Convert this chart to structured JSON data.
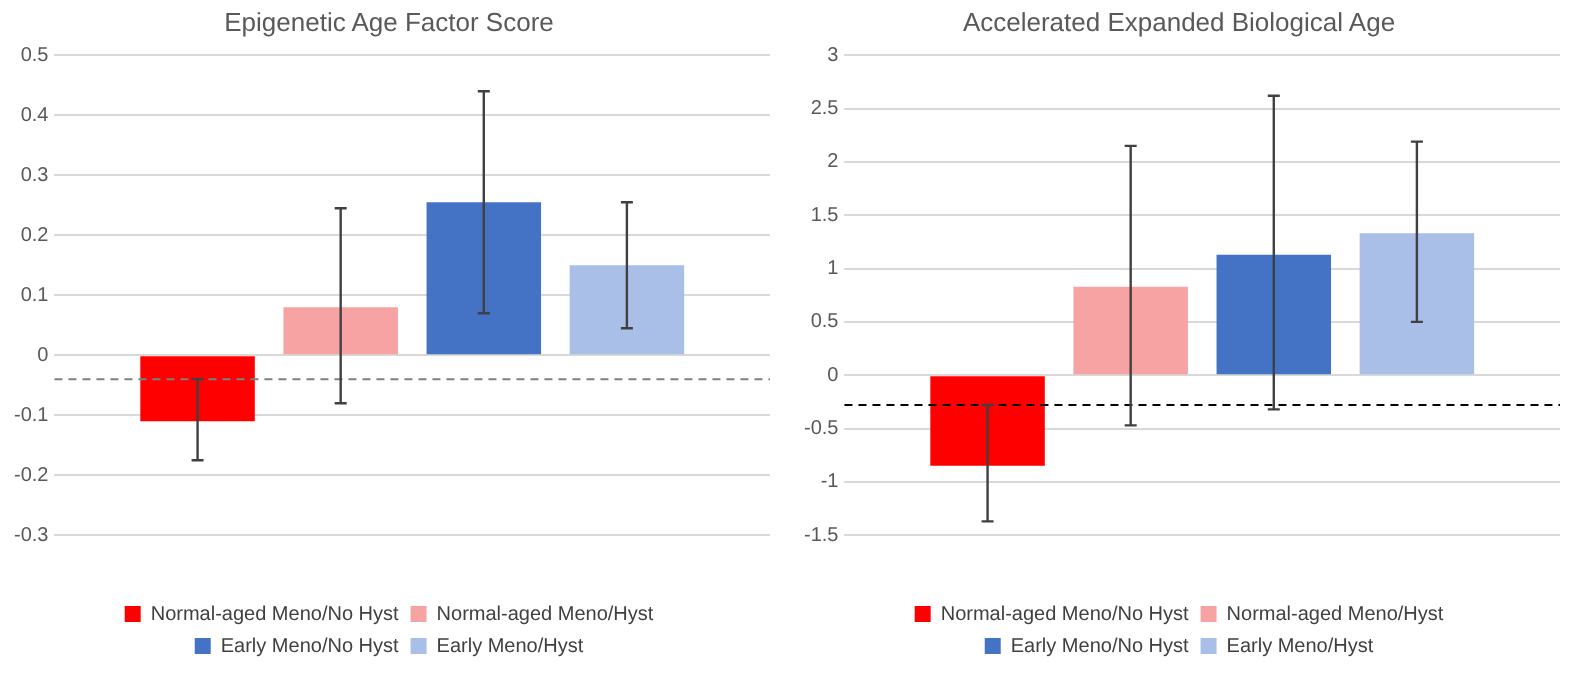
{
  "chart_data": [
    {
      "type": "bar",
      "title": "Epigenetic Age Factor Score",
      "categories": [
        null
      ],
      "series": [
        {
          "name": "Normal-aged Meno/No Hyst",
          "color": "#ff0000",
          "values": [
            -0.11
          ],
          "errors": [
            [
              -0.175,
              -0.04
            ]
          ]
        },
        {
          "name": "Normal-aged Meno/Hyst",
          "color": "#f7a3a3",
          "values": [
            0.08
          ],
          "errors": [
            [
              -0.08,
              0.245
            ]
          ]
        },
        {
          "name": "Early Meno/No Hyst",
          "color": "#4472c4",
          "values": [
            0.255
          ],
          "errors": [
            [
              0.07,
              0.44
            ]
          ]
        },
        {
          "name": "Early Meno/Hyst",
          "color": "#a9bfe8",
          "values": [
            0.15
          ],
          "errors": [
            [
              0.045,
              0.255
            ]
          ]
        }
      ],
      "ylim": [
        -0.3,
        0.5
      ],
      "yticks": [
        -0.3,
        -0.2,
        -0.1,
        0,
        0.1,
        0.2,
        0.3,
        0.4,
        0.5
      ],
      "grid": "y",
      "legend": "bottom",
      "ref_lines": [
        {
          "axis": "y",
          "value": -0.04,
          "color": "#7f7f7f",
          "line_style": "dashed"
        }
      ]
    },
    {
      "type": "bar",
      "title": "Accelerated Expanded Biological Age",
      "categories": [
        null
      ],
      "series": [
        {
          "name": "Normal-aged Meno/No Hyst",
          "color": "#ff0000",
          "values": [
            -0.85
          ],
          "errors": [
            [
              -1.37,
              -0.28
            ]
          ]
        },
        {
          "name": "Normal-aged Meno/Hyst",
          "color": "#f7a3a3",
          "values": [
            0.83
          ],
          "errors": [
            [
              -0.47,
              2.15
            ]
          ]
        },
        {
          "name": "Early Meno/No Hyst",
          "color": "#4472c4",
          "values": [
            1.13
          ],
          "errors": [
            [
              -0.32,
              2.62
            ]
          ]
        },
        {
          "name": "Early Meno/Hyst",
          "color": "#a9bfe8",
          "values": [
            1.33
          ],
          "errors": [
            [
              0.5,
              2.19
            ]
          ]
        }
      ],
      "ylim": [
        -1.5,
        3
      ],
      "yticks": [
        -1.5,
        -1,
        -0.5,
        0,
        0.5,
        1,
        1.5,
        2,
        2.5,
        3
      ],
      "grid": "y",
      "legend": "bottom",
      "ref_lines": [
        {
          "axis": "y",
          "value": -0.28,
          "color": "#000000",
          "line_style": "dashed"
        }
      ]
    }
  ]
}
